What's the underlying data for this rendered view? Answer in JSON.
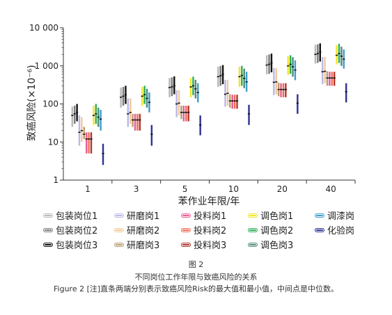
{
  "chart_data": {
    "type": "range",
    "ylabel": "致癌风险(×10⁻⁶)",
    "xlabel": "苯作业年限/年",
    "yscale": "log",
    "ylim": [
      1,
      10000
    ],
    "yticks": [
      "1",
      "10",
      "100",
      "1 000",
      "10 000"
    ],
    "categories": [
      "1",
      "3",
      "5",
      "10",
      "20",
      "40"
    ],
    "series": [
      {
        "name": "包装岗位1",
        "color": "#b8b8b8",
        "values": [
          [
            25,
            85,
            50
          ],
          [
            80,
            270,
            150
          ],
          [
            150,
            480,
            270
          ],
          [
            280,
            950,
            520
          ],
          [
            600,
            1900,
            1050
          ],
          [
            1150,
            3600,
            2000
          ]
        ]
      },
      {
        "name": "包装岗位2",
        "color": "#7a7a7a",
        "values": [
          [
            30,
            90,
            55
          ],
          [
            90,
            280,
            160
          ],
          [
            160,
            500,
            280
          ],
          [
            300,
            1000,
            550
          ],
          [
            620,
            2000,
            1100
          ],
          [
            1200,
            3700,
            2100
          ]
        ]
      },
      {
        "name": "包装岗位3",
        "color": "#111111",
        "values": [
          [
            35,
            100,
            60
          ],
          [
            100,
            300,
            175
          ],
          [
            180,
            530,
            300
          ],
          [
            330,
            1050,
            600
          ],
          [
            680,
            2100,
            1200
          ],
          [
            1300,
            3900,
            2300
          ]
        ]
      },
      {
        "name": "研磨岗1",
        "color": "#b9b9e6",
        "values": [
          [
            8,
            50,
            18
          ],
          [
            25,
            140,
            55
          ],
          [
            45,
            230,
            100
          ],
          [
            85,
            430,
            180
          ],
          [
            170,
            880,
            370
          ],
          [
            330,
            1700,
            700
          ]
        ]
      },
      {
        "name": "研磨岗2",
        "color": "#f3c898",
        "values": [
          [
            10,
            45,
            20
          ],
          [
            30,
            140,
            60
          ],
          [
            50,
            230,
            105
          ],
          [
            90,
            430,
            190
          ],
          [
            180,
            880,
            380
          ],
          [
            350,
            1700,
            720
          ]
        ]
      },
      {
        "name": "研磨岗3",
        "color": "#b89b72",
        "values": [
          [
            12,
            25,
            16
          ],
          [
            25,
            55,
            38
          ],
          [
            40,
            90,
            60
          ],
          [
            80,
            180,
            120
          ],
          [
            160,
            360,
            240
          ],
          [
            300,
            720,
            480
          ]
        ]
      },
      {
        "name": "投料岗1",
        "color": "#ea5b96",
        "values": [
          [
            5,
            18,
            12
          ],
          [
            20,
            55,
            38
          ],
          [
            35,
            90,
            60
          ],
          [
            75,
            175,
            120
          ],
          [
            150,
            350,
            240
          ],
          [
            300,
            700,
            480
          ]
        ]
      },
      {
        "name": "投料岗2",
        "color": "#ee6a55",
        "values": [
          [
            5,
            18,
            12
          ],
          [
            20,
            55,
            38
          ],
          [
            35,
            90,
            60
          ],
          [
            75,
            175,
            120
          ],
          [
            150,
            350,
            240
          ],
          [
            300,
            700,
            480
          ]
        ]
      },
      {
        "name": "投料岗3",
        "color": "#b0352b",
        "values": [
          [
            5,
            18,
            12
          ],
          [
            20,
            55,
            38
          ],
          [
            35,
            90,
            60
          ],
          [
            75,
            175,
            120
          ],
          [
            150,
            350,
            240
          ],
          [
            300,
            700,
            480
          ]
        ]
      },
      {
        "name": "调色岗1",
        "color": "#f1e629",
        "values": [
          [
            28,
            90,
            50
          ],
          [
            90,
            280,
            160
          ],
          [
            150,
            480,
            280
          ],
          [
            280,
            950,
            520
          ],
          [
            580,
            1800,
            1000
          ],
          [
            1100,
            3500,
            1900
          ]
        ]
      },
      {
        "name": "调色岗2",
        "color": "#2eac57",
        "values": [
          [
            30,
            100,
            55
          ],
          [
            100,
            300,
            175
          ],
          [
            170,
            520,
            300
          ],
          [
            300,
            1000,
            560
          ],
          [
            620,
            1900,
            1100
          ],
          [
            1200,
            3800,
            2100
          ]
        ]
      },
      {
        "name": "调色岗3",
        "color": "#4f8a7b",
        "values": [
          [
            25,
            80,
            45
          ],
          [
            80,
            250,
            140
          ],
          [
            140,
            430,
            250
          ],
          [
            260,
            850,
            470
          ],
          [
            520,
            1700,
            950
          ],
          [
            1000,
            3200,
            1800
          ]
        ]
      },
      {
        "name": "调漆岗",
        "color": "#3f9cc8",
        "values": [
          [
            20,
            70,
            40
          ],
          [
            60,
            200,
            110
          ],
          [
            110,
            350,
            200
          ],
          [
            210,
            700,
            380
          ],
          [
            420,
            1400,
            780
          ],
          [
            850,
            2700,
            1500
          ]
        ]
      },
      {
        "name": "化验岗",
        "color": "#2e3192",
        "values": [
          [
            2.5,
            9,
            5
          ],
          [
            8,
            28,
            16
          ],
          [
            15,
            50,
            28
          ],
          [
            28,
            95,
            55
          ],
          [
            55,
            180,
            105
          ],
          [
            110,
            350,
            210
          ]
        ]
      }
    ]
  },
  "legend_order": [
    "包装岗位1",
    "研磨岗1",
    "投料岗1",
    "调色岗1",
    "调漆岗",
    "包装岗位2",
    "研磨岗2",
    "投料岗2",
    "调色岗2",
    "化验岗",
    "包装岗位3",
    "研磨岗3",
    "投料岗3",
    "调色岗3"
  ],
  "figure_number": "图 2",
  "caption_cn": "不同岗位工作年限与致癌风险的关系",
  "caption_en": "Figure 2 [注]直条两端分别表示致癌风险Risk的最大值和最小值，中间点是中位数。"
}
